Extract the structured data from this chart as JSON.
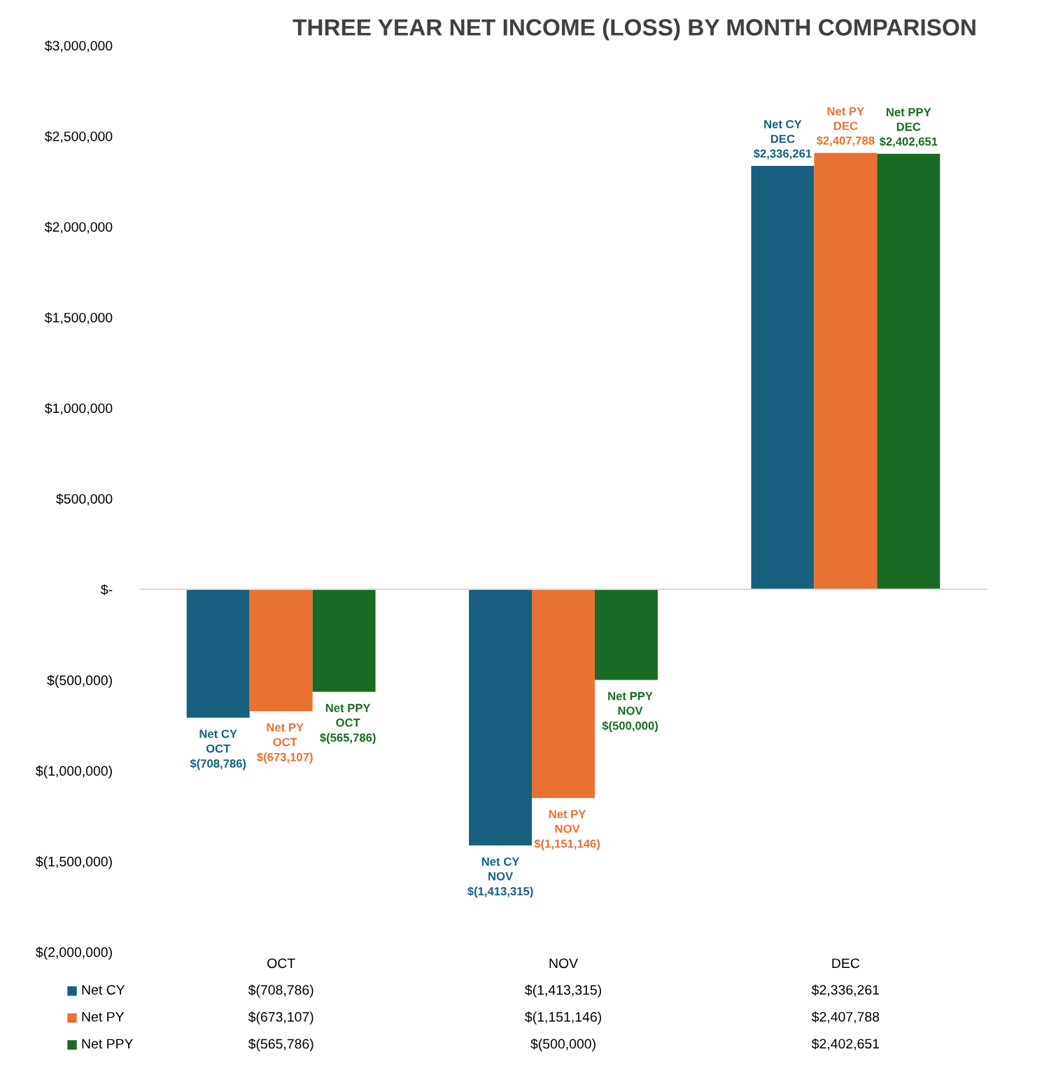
{
  "chart_data": {
    "type": "bar",
    "title": "THREE YEAR NET INCOME (LOSS) BY MONTH COMPARISON",
    "categories": [
      "OCT",
      "NOV",
      "DEC"
    ],
    "series": [
      {
        "name": "Net CY",
        "color": "#17607f",
        "values": [
          -708786,
          -1413315,
          2336261
        ],
        "value_labels": [
          "$(708,786)",
          "$(1,413,315)",
          "$2,336,261"
        ]
      },
      {
        "name": "Net PY",
        "color": "#e97132",
        "values": [
          -673107,
          -1151146,
          2407788
        ],
        "value_labels": [
          "$(673,107)",
          "$(1,151,146)",
          "$2,407,788"
        ]
      },
      {
        "name": "Net PPY",
        "color": "#196b24",
        "values": [
          -565786,
          -500000,
          2402651
        ],
        "value_labels": [
          "$(565,786)",
          "$(500,000)",
          "$2,402,651"
        ]
      }
    ],
    "annotations": [
      "Net CY\nOCT\n$(708,786)",
      "Net CY\nNOV\n$(1,413,315)",
      "Net CY\nDEC\n$2,336,261",
      "Net PY\nOCT\n$(673,107)",
      "Net PY\nNOV\n$(1,151,146)",
      "Net PY\nDEC\n$2,407,788",
      "Net PPY\nOCT\n$(565,786)",
      "Net PPY\nNOV\n$(500,000)",
      "Net PPY\nDEC\n$2,402,651"
    ],
    "ylim": [
      -2000000,
      3000000
    ],
    "yticks": [
      {
        "value": -2000000,
        "label": "$(2,000,000)"
      },
      {
        "value": -1500000,
        "label": "$(1,500,000)"
      },
      {
        "value": -1000000,
        "label": "$(1,000,000)"
      },
      {
        "value": -500000,
        "label": "$(500,000)"
      },
      {
        "value": 0,
        "label": "$-"
      },
      {
        "value": 500000,
        "label": "$500,000"
      },
      {
        "value": 1000000,
        "label": "$1,000,000"
      },
      {
        "value": 1500000,
        "label": "$1,500,000"
      },
      {
        "value": 2000000,
        "label": "$2,000,000"
      },
      {
        "value": 2500000,
        "label": "$2,500,000"
      },
      {
        "value": 3000000,
        "label": "$3,000,000"
      }
    ],
    "legend": "bottom"
  }
}
